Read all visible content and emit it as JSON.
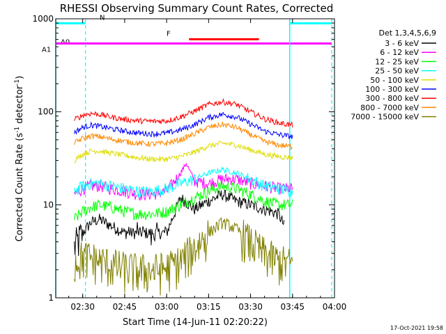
{
  "chart_data": {
    "type": "line",
    "title": "RHESSI Observing Summary Count Rates, Corrected",
    "xlabel": "Start Time (14-Jun-11 02:20:22)",
    "ylabel_main": "Corrected Count Rate (s",
    "ylabel_sup1": "-1",
    "ylabel_mid": " detector",
    "ylabel_sup2": "-1",
    "ylabel_end": ")",
    "yscale": "log",
    "ylim": [
      1,
      1000
    ],
    "xlim": [
      "02:20:22",
      "04:00:00"
    ],
    "x_ticks": [
      "02:30",
      "02:45",
      "03:00",
      "03:15",
      "03:30",
      "03:45",
      "04:00"
    ],
    "y_ticks": [
      "1",
      "10",
      "100",
      "1000"
    ],
    "y_tick_values": [
      1,
      10,
      100,
      1000
    ],
    "timestamp": "17-Oct-2021 19:58",
    "legend_title": "Det 1,3,4,5,6,9",
    "legend_position": "right",
    "series": [
      {
        "name": "3 - 6 keV",
        "color": "#000000",
        "x": [
          "02:27",
          "02:30",
          "02:33",
          "02:36",
          "02:40",
          "02:45",
          "02:50",
          "02:55",
          "03:00",
          "03:05",
          "03:10",
          "03:15",
          "03:20",
          "03:25",
          "03:30",
          "03:35",
          "03:40",
          "03:42"
        ],
        "values": [
          3.5,
          5,
          6.5,
          7,
          6,
          5,
          5,
          5,
          5,
          12,
          9,
          11,
          13,
          11,
          10,
          9,
          8,
          6
        ]
      },
      {
        "name": "6 - 12 keV",
        "color": "#ff00ff",
        "x": [
          "02:27",
          "02:30",
          "02:33",
          "02:36",
          "02:40",
          "02:45",
          "02:50",
          "02:55",
          "03:00",
          "03:05",
          "03:07",
          "03:10",
          "03:15",
          "03:20",
          "03:25",
          "03:30",
          "03:35",
          "03:40",
          "03:45"
        ],
        "values": [
          13,
          15,
          16,
          16,
          15,
          14,
          13,
          13,
          14,
          22,
          28,
          18,
          17,
          19,
          19,
          17,
          16,
          15,
          15
        ]
      },
      {
        "name": "12 - 25 keV",
        "color": "#00ff00",
        "x": [
          "02:27",
          "02:30",
          "02:33",
          "02:36",
          "02:40",
          "02:45",
          "02:50",
          "02:55",
          "03:00",
          "03:05",
          "03:10",
          "03:15",
          "03:20",
          "03:25",
          "03:30",
          "03:35",
          "03:40",
          "03:45"
        ],
        "values": [
          7,
          8.5,
          9.5,
          10,
          9.5,
          8.5,
          8,
          8,
          8.5,
          10,
          12,
          14,
          16,
          15,
          13,
          11,
          10,
          10
        ]
      },
      {
        "name": "25 - 50 keV",
        "color": "#00ffff",
        "x": [
          "02:27",
          "02:30",
          "02:33",
          "02:36",
          "02:40",
          "02:45",
          "02:50",
          "02:55",
          "03:00",
          "03:05",
          "03:10",
          "03:15",
          "03:20",
          "03:25",
          "03:30",
          "03:35",
          "03:40",
          "03:45"
        ],
        "values": [
          14,
          16,
          17,
          17,
          16,
          15,
          14,
          14,
          15,
          17,
          19,
          22,
          24,
          22,
          19,
          16,
          15,
          14
        ]
      },
      {
        "name": "50 - 100 keV",
        "color": "#dddd00",
        "x": [
          "02:27",
          "02:30",
          "02:33",
          "02:36",
          "02:40",
          "02:45",
          "02:50",
          "02:55",
          "03:00",
          "03:05",
          "03:10",
          "03:15",
          "03:20",
          "03:25",
          "03:30",
          "03:35",
          "03:40",
          "03:45"
        ],
        "values": [
          30,
          35,
          38,
          38,
          36,
          34,
          32,
          31,
          31,
          33,
          37,
          43,
          46,
          44,
          39,
          35,
          33,
          32
        ]
      },
      {
        "name": "100 - 300 keV",
        "color": "#0000ff",
        "x": [
          "02:27",
          "02:30",
          "02:33",
          "02:36",
          "02:40",
          "02:45",
          "02:50",
          "02:55",
          "03:00",
          "03:05",
          "03:10",
          "03:15",
          "03:20",
          "03:25",
          "03:30",
          "03:35",
          "03:40",
          "03:45"
        ],
        "values": [
          60,
          68,
          72,
          70,
          66,
          62,
          59,
          58,
          59,
          64,
          73,
          87,
          94,
          88,
          74,
          62,
          57,
          54
        ]
      },
      {
        "name": "300 - 800 keV",
        "color": "#ff0000",
        "x": [
          "02:27",
          "02:30",
          "02:33",
          "02:36",
          "02:40",
          "02:45",
          "02:50",
          "02:55",
          "03:00",
          "03:05",
          "03:10",
          "03:15",
          "03:20",
          "03:25",
          "03:30",
          "03:35",
          "03:40",
          "03:45"
        ],
        "values": [
          82,
          92,
          96,
          94,
          88,
          83,
          80,
          79,
          80,
          88,
          102,
          120,
          128,
          120,
          100,
          84,
          76,
          72
        ]
      },
      {
        "name": "800 - 7000 keV",
        "color": "#ff8800",
        "x": [
          "02:27",
          "02:30",
          "02:33",
          "02:36",
          "02:40",
          "02:45",
          "02:50",
          "02:55",
          "03:00",
          "03:05",
          "03:10",
          "03:15",
          "03:20",
          "03:25",
          "03:30",
          "03:35",
          "03:40",
          "03:45"
        ],
        "values": [
          46,
          52,
          55,
          54,
          51,
          48,
          46,
          45,
          46,
          50,
          58,
          68,
          73,
          68,
          57,
          48,
          44,
          42
        ]
      },
      {
        "name": "7000 - 15000 keV",
        "color": "#808000",
        "x": [
          "02:27",
          "02:30",
          "02:33",
          "02:36",
          "02:40",
          "02:45",
          "02:50",
          "02:55",
          "03:00",
          "03:05",
          "03:10",
          "03:15",
          "03:20",
          "03:25",
          "03:30",
          "03:35",
          "03:40",
          "03:45"
        ],
        "values": [
          2.5,
          2.8,
          2.7,
          2.5,
          2.3,
          2.1,
          2.0,
          2.0,
          2.1,
          2.5,
          3.5,
          5,
          6.5,
          5.5,
          4,
          3,
          2.5,
          2.3
        ]
      }
    ],
    "flag_bars": [
      {
        "label": "A0",
        "color": "#ff00ff",
        "start": "02:20:22",
        "end": "03:59:00",
        "y_value": 542
      },
      {
        "label": "A1",
        "color": "#ff00ff",
        "start": "02:20:22",
        "end": "03:59:00",
        "y_value": 542
      },
      {
        "label": "N",
        "color": "#00ffff",
        "start": "02:20:22",
        "end": "02:31:00",
        "y_value": 895
      },
      {
        "label": "N",
        "color": "#00ffff",
        "start": "03:44:00",
        "end": "03:59:00",
        "y_value": 895
      },
      {
        "label": "F",
        "color": "#ff0000",
        "start": "03:08:00",
        "end": "03:33:00",
        "y_value": 603
      }
    ],
    "vlines_solid": [
      {
        "time": "02:20:22",
        "color": "#00ffff"
      },
      {
        "time": "03:44:00",
        "color": "#00ffff"
      }
    ],
    "vlines_dashed": [
      {
        "time": "02:31:00",
        "color": "#00ffff"
      },
      {
        "time": "03:59:00",
        "color": "#00ffff"
      }
    ]
  }
}
